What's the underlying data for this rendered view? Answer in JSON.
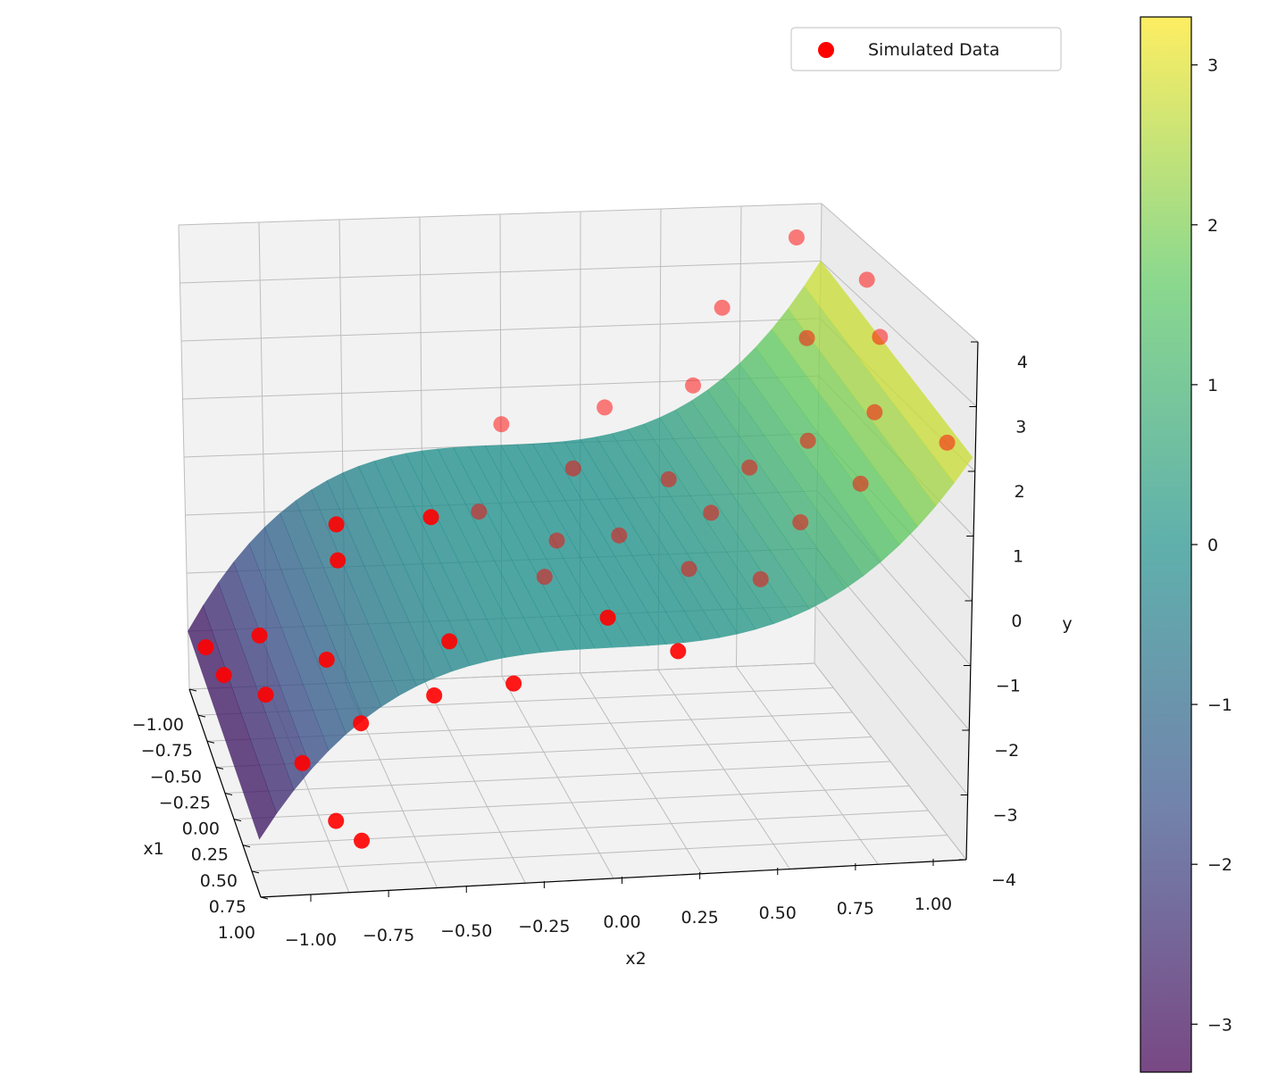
{
  "chart_data": {
    "type": "scatter",
    "subtype": "3d-scatter-with-surface",
    "legend": {
      "location": "top-right",
      "entries": [
        {
          "label": "Simulated Data",
          "color": "#ff0000"
        }
      ]
    },
    "axes": {
      "x1": {
        "label": "x1",
        "range": [
          -1.0,
          1.0
        ],
        "ticks": [
          "−1.00",
          "−0.75",
          "−0.50",
          "−0.25",
          "0.00",
          "0.25",
          "0.50",
          "0.75",
          "1.00"
        ]
      },
      "x2": {
        "label": "x2",
        "range": [
          -1.0,
          1.0
        ],
        "ticks": [
          "−1.00",
          "−0.75",
          "−0.50",
          "−0.25",
          "0.00",
          "0.25",
          "0.50",
          "0.75",
          "1.00"
        ]
      },
      "y": {
        "label": "y",
        "range": [
          -4,
          4
        ],
        "ticks": [
          "−4",
          "−3",
          "−2",
          "−1",
          "0",
          "1",
          "2",
          "3",
          "4"
        ]
      }
    },
    "grid": true,
    "surface": {
      "function": "y = 3 * x2^3",
      "colormap": "viridis",
      "alpha": 0.7
    },
    "colorbar": {
      "range": [
        -3.3,
        3.3
      ],
      "ticks": [
        {
          "value": 3,
          "label": "3"
        },
        {
          "value": 2,
          "label": "2"
        },
        {
          "value": 1,
          "label": "1"
        },
        {
          "value": 0,
          "label": "0"
        },
        {
          "value": -1,
          "label": "−1"
        },
        {
          "value": -2,
          "label": "−2"
        },
        {
          "value": -3,
          "label": "−3"
        }
      ],
      "colors": [
        "#440154",
        "#3b528b",
        "#21918c",
        "#5ec962",
        "#fde725"
      ]
    },
    "series": [
      {
        "name": "Simulated Data",
        "color": "#ff0000",
        "points": [
          [
            -0.95,
            -0.95,
            -3.2
          ],
          [
            -0.9,
            -0.9,
            -3.6
          ],
          [
            -0.6,
            -0.82,
            -2.4
          ],
          [
            -0.2,
            -0.85,
            -2.7
          ],
          [
            0.3,
            -0.8,
            -3.0
          ],
          [
            0.7,
            -0.75,
            -3.3
          ],
          [
            0.9,
            -0.7,
            -3.3
          ],
          [
            0.5,
            -0.65,
            -2.0
          ],
          [
            0.1,
            -0.7,
            -1.6
          ],
          [
            -0.4,
            -0.6,
            -0.8
          ],
          [
            -0.8,
            -0.55,
            -0.9
          ],
          [
            0.6,
            -0.45,
            -1.4
          ],
          [
            0.2,
            -0.35,
            -1.2
          ],
          [
            -0.5,
            -0.3,
            -0.3
          ],
          [
            0.8,
            -0.25,
            -0.9
          ],
          [
            -0.2,
            -0.2,
            0.3
          ],
          [
            0.4,
            -0.1,
            0.2
          ],
          [
            -0.7,
            -0.05,
            0.9
          ],
          [
            0.0,
            0.0,
            0.1
          ],
          [
            0.6,
            0.05,
            -0.2
          ],
          [
            -0.3,
            0.1,
            0.8
          ],
          [
            0.2,
            0.15,
            0.5
          ],
          [
            0.9,
            0.2,
            -0.3
          ],
          [
            -0.6,
            0.25,
            1.3
          ],
          [
            0.5,
            0.3,
            0.4
          ],
          [
            -0.1,
            0.35,
            0.9
          ],
          [
            0.3,
            0.4,
            1.0
          ],
          [
            0.8,
            0.45,
            0.7
          ],
          [
            -0.5,
            0.5,
            1.8
          ],
          [
            0.1,
            0.55,
            1.4
          ],
          [
            0.6,
            0.6,
            1.3
          ],
          [
            -0.8,
            0.65,
            2.6
          ],
          [
            0.2,
            0.7,
            2.0
          ],
          [
            0.7,
            0.75,
            2.1
          ],
          [
            -0.3,
            0.8,
            2.9
          ],
          [
            0.4,
            0.85,
            2.8
          ],
          [
            -0.9,
            0.9,
            3.6
          ],
          [
            0.0,
            0.95,
            3.4
          ],
          [
            0.9,
            0.95,
            3.1
          ],
          [
            -0.4,
            1.0,
            3.7
          ]
        ]
      }
    ]
  }
}
